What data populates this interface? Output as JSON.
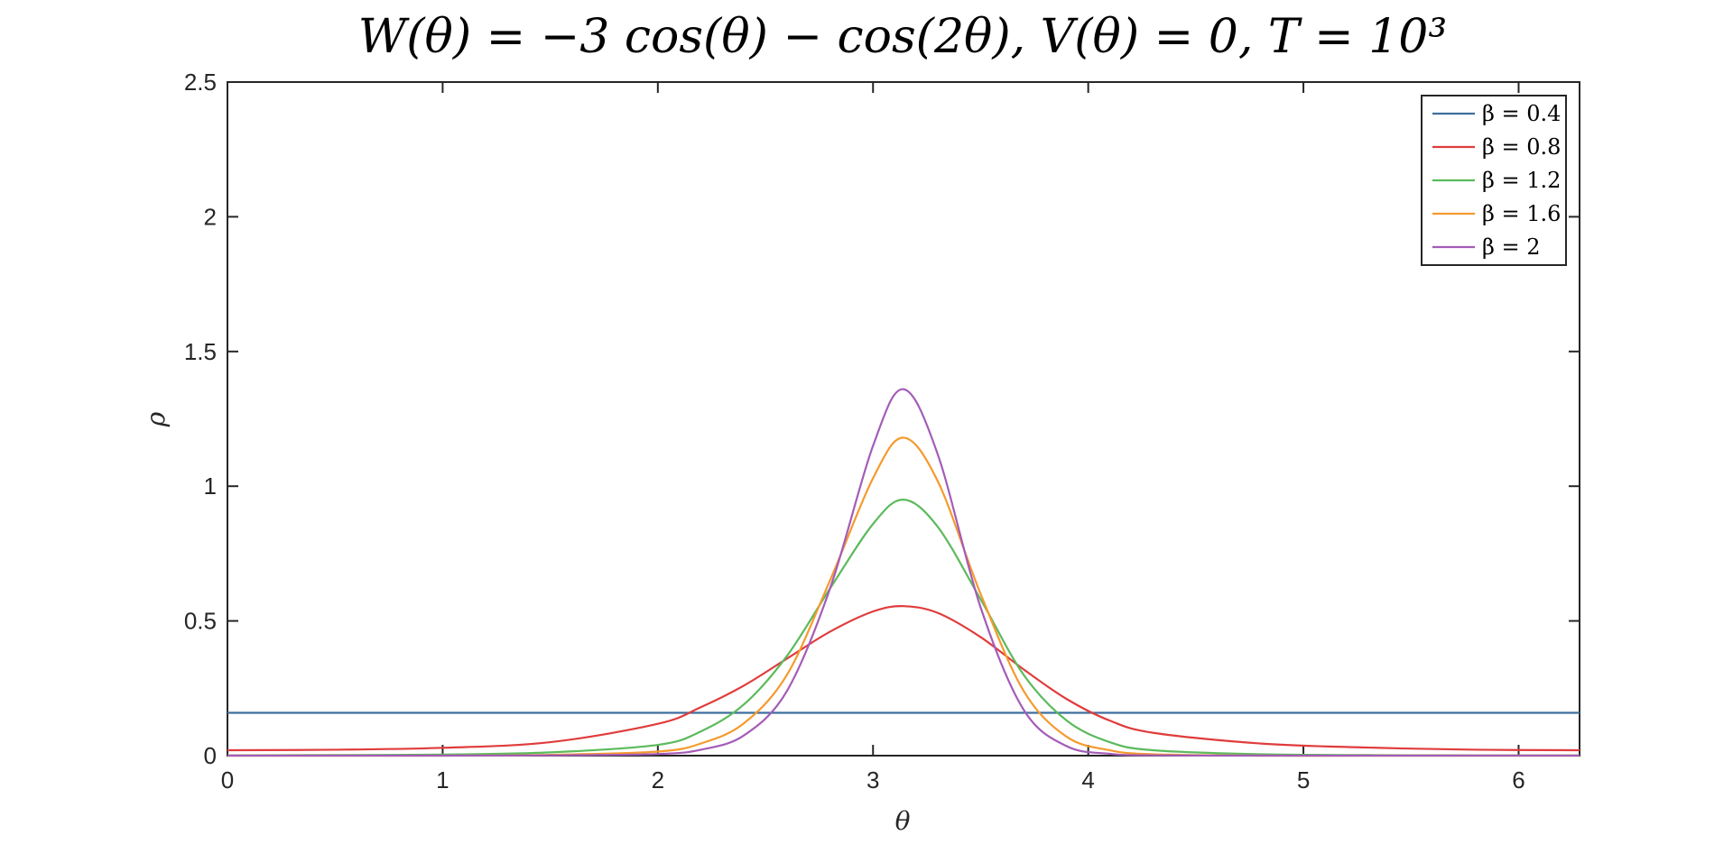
{
  "chart_data": {
    "type": "line",
    "title": "W(θ) = −3 cos(θ) − cos(2θ), V(θ) = 0, T = 10³",
    "xlabel": "θ",
    "ylabel": "ρ",
    "xlim": [
      0,
      6.2832
    ],
    "ylim": [
      0,
      2.5
    ],
    "x_ticks": [
      0,
      1,
      2,
      3,
      4,
      5,
      6
    ],
    "y_ticks": [
      0,
      0.5,
      1,
      1.5,
      2,
      2.5
    ],
    "x_tick_labels": [
      "0",
      "1",
      "2",
      "3",
      "4",
      "5",
      "6"
    ],
    "y_tick_labels": [
      "0",
      "0.5",
      "1",
      "1.5",
      "2",
      "2.5"
    ],
    "grid": false,
    "legend_position": "top-right",
    "x": [
      0,
      0.5,
      1.0,
      1.5,
      2.0,
      2.2,
      2.4,
      2.6,
      2.8,
      3.0,
      3.1416,
      3.3,
      3.5,
      3.7,
      3.9,
      4.1,
      4.3,
      4.8,
      5.3,
      5.8,
      6.2832
    ],
    "series": [
      {
        "name": "β = 0.4",
        "color": "#3d6f9e",
        "values": [
          0.159,
          0.159,
          0.159,
          0.159,
          0.159,
          0.159,
          0.159,
          0.159,
          0.159,
          0.159,
          0.159,
          0.159,
          0.159,
          0.159,
          0.159,
          0.159,
          0.159,
          0.159,
          0.159,
          0.159,
          0.159
        ]
      },
      {
        "name": "β = 0.8",
        "color": "#e03c3c",
        "values": [
          0.02,
          0.022,
          0.029,
          0.05,
          0.118,
          0.18,
          0.26,
          0.36,
          0.46,
          0.535,
          0.555,
          0.53,
          0.44,
          0.32,
          0.21,
          0.13,
          0.085,
          0.045,
          0.03,
          0.022,
          0.02
        ]
      },
      {
        "name": "β = 1.2",
        "color": "#5cba5c",
        "values": [
          0.001,
          0.002,
          0.004,
          0.012,
          0.04,
          0.09,
          0.19,
          0.37,
          0.62,
          0.86,
          0.95,
          0.85,
          0.58,
          0.3,
          0.13,
          0.05,
          0.02,
          0.005,
          0.002,
          0.001,
          0.001
        ]
      },
      {
        "name": "β = 1.6",
        "color": "#f59a2e",
        "values": [
          0.0,
          0.0,
          0.0,
          0.003,
          0.015,
          0.045,
          0.12,
          0.3,
          0.65,
          1.03,
          1.18,
          1.02,
          0.6,
          0.24,
          0.07,
          0.02,
          0.005,
          0.0,
          0.0,
          0.0,
          0.0
        ]
      },
      {
        "name": "β = 2",
        "color": "#a45cb8",
        "values": [
          0.0,
          0.0,
          0.0,
          0.001,
          0.006,
          0.022,
          0.075,
          0.24,
          0.62,
          1.15,
          1.36,
          1.12,
          0.55,
          0.17,
          0.035,
          0.007,
          0.001,
          0.0,
          0.0,
          0.0,
          0.0
        ]
      }
    ]
  }
}
